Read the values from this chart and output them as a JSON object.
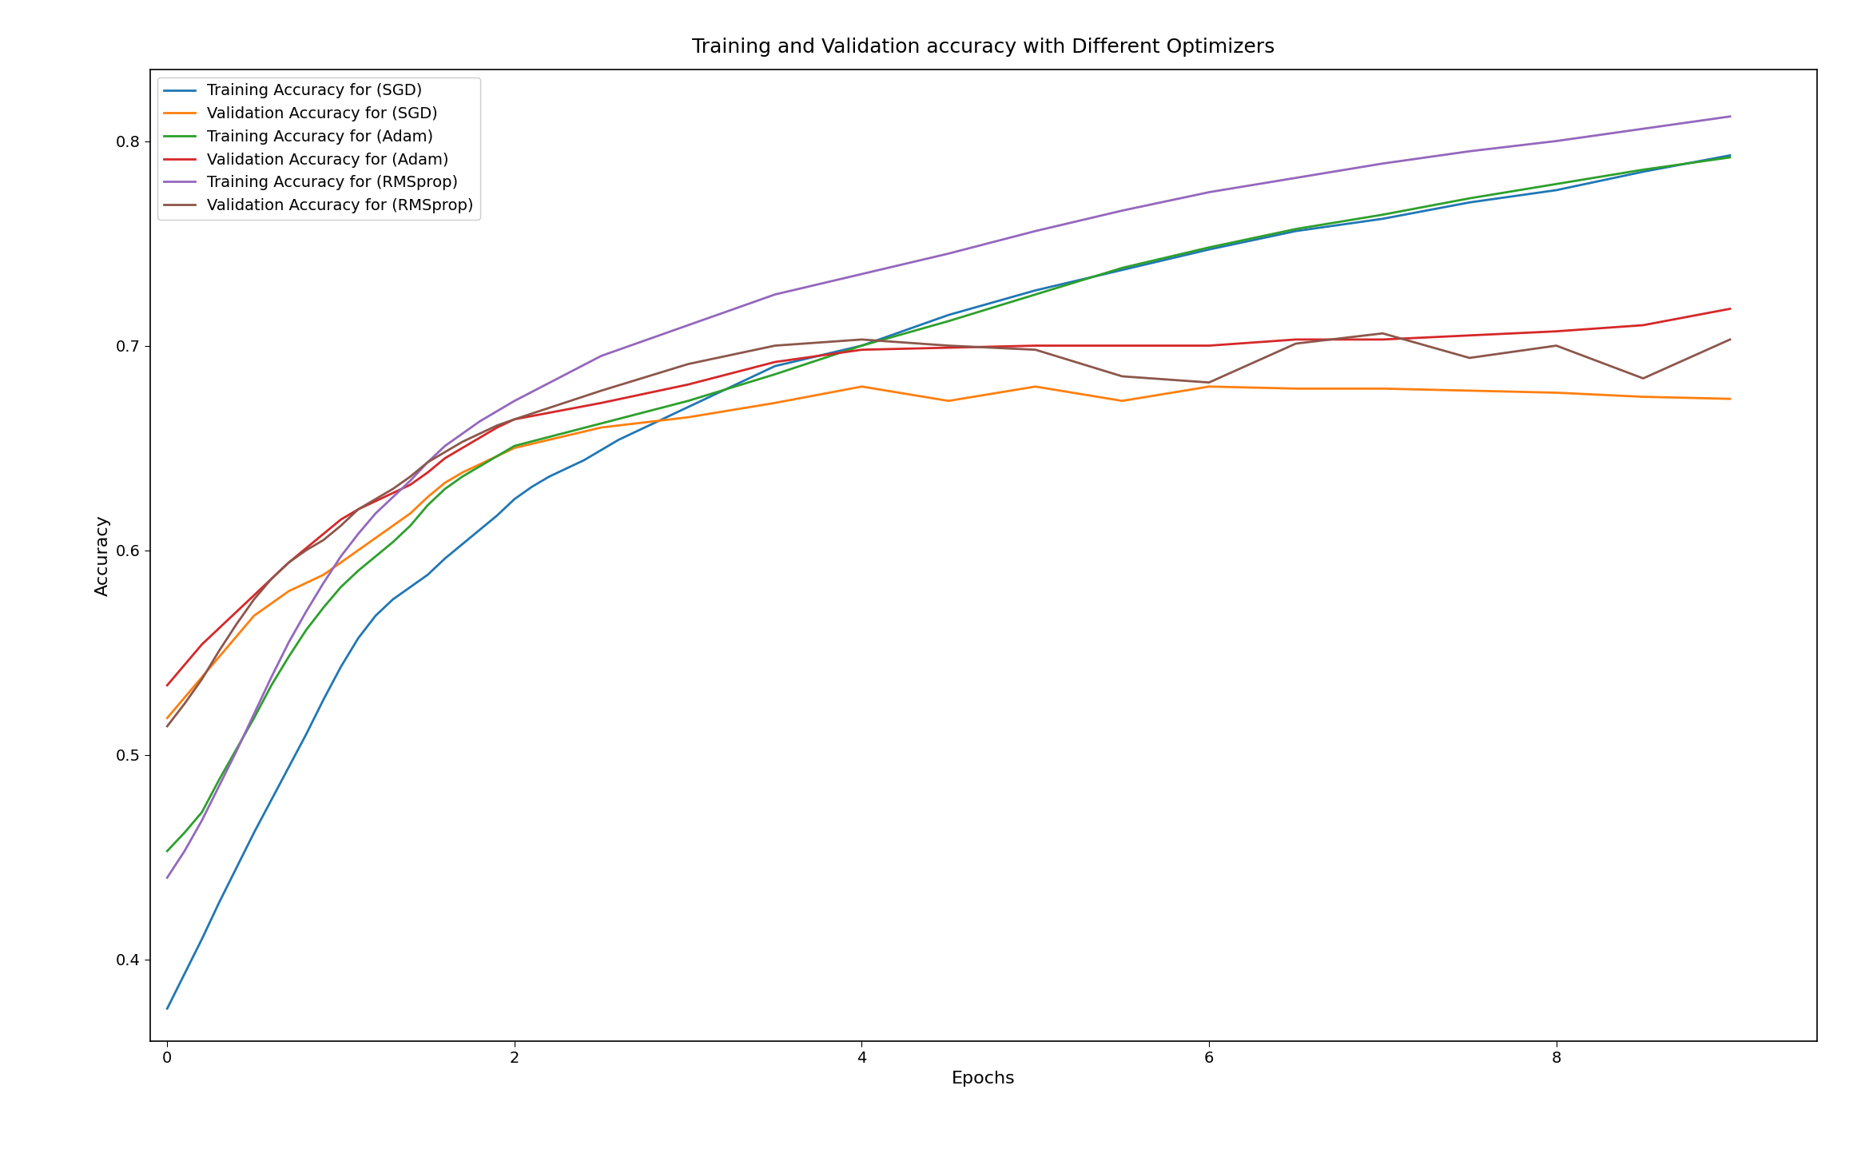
{
  "title": "Training and Validation accuracy with Different Optimizers",
  "xlabel": "Epochs",
  "ylabel": "Accuracy",
  "xlim": [
    -0.1,
    9.5
  ],
  "ylim": [
    0.36,
    0.835
  ],
  "series": [
    {
      "label": "Training Accuracy for (SGD)",
      "color": "#1f77b4",
      "x": [
        0.0,
        0.1,
        0.2,
        0.3,
        0.4,
        0.5,
        0.6,
        0.7,
        0.8,
        0.9,
        1.0,
        1.1,
        1.2,
        1.3,
        1.4,
        1.5,
        1.6,
        1.7,
        1.8,
        1.9,
        2.0,
        2.1,
        2.2,
        2.3,
        2.4,
        2.5,
        2.6,
        2.7,
        2.8,
        2.9,
        3.0,
        3.5,
        4.0,
        4.5,
        5.0,
        5.5,
        6.0,
        6.5,
        7.0,
        7.5,
        8.0,
        8.5,
        9.0
      ],
      "y": [
        0.376,
        0.393,
        0.41,
        0.428,
        0.445,
        0.462,
        0.478,
        0.494,
        0.51,
        0.527,
        0.543,
        0.557,
        0.568,
        0.576,
        0.582,
        0.588,
        0.596,
        0.603,
        0.61,
        0.617,
        0.625,
        0.631,
        0.636,
        0.64,
        0.644,
        0.649,
        0.654,
        0.658,
        0.662,
        0.666,
        0.67,
        0.69,
        0.7,
        0.715,
        0.727,
        0.737,
        0.747,
        0.756,
        0.762,
        0.77,
        0.776,
        0.785,
        0.793
      ]
    },
    {
      "label": "Validation Accuracy for (SGD)",
      "color": "#ff7f0e",
      "x": [
        0.0,
        0.1,
        0.2,
        0.3,
        0.4,
        0.5,
        0.6,
        0.7,
        0.8,
        0.9,
        1.0,
        1.1,
        1.2,
        1.3,
        1.4,
        1.5,
        1.6,
        1.7,
        1.8,
        1.9,
        2.0,
        2.5,
        3.0,
        3.5,
        4.0,
        4.5,
        5.0,
        5.5,
        6.0,
        6.5,
        7.0,
        7.5,
        8.0,
        8.5,
        9.0
      ],
      "y": [
        0.518,
        0.528,
        0.538,
        0.548,
        0.558,
        0.568,
        0.574,
        0.58,
        0.584,
        0.588,
        0.594,
        0.6,
        0.606,
        0.612,
        0.618,
        0.626,
        0.633,
        0.638,
        0.642,
        0.646,
        0.65,
        0.66,
        0.665,
        0.672,
        0.68,
        0.673,
        0.68,
        0.673,
        0.68,
        0.679,
        0.679,
        0.678,
        0.677,
        0.675,
        0.674
      ]
    },
    {
      "label": "Training Accuracy for (Adam)",
      "color": "#2ca02c",
      "x": [
        0.0,
        0.1,
        0.2,
        0.3,
        0.4,
        0.5,
        0.6,
        0.7,
        0.8,
        0.9,
        1.0,
        1.1,
        1.2,
        1.3,
        1.4,
        1.5,
        1.6,
        1.7,
        1.8,
        1.9,
        2.0,
        2.5,
        3.0,
        3.5,
        4.0,
        4.5,
        5.0,
        5.5,
        6.0,
        6.5,
        7.0,
        7.5,
        8.0,
        8.5,
        9.0
      ],
      "y": [
        0.453,
        0.462,
        0.472,
        0.488,
        0.503,
        0.518,
        0.534,
        0.548,
        0.561,
        0.572,
        0.582,
        0.59,
        0.597,
        0.604,
        0.612,
        0.622,
        0.63,
        0.636,
        0.641,
        0.646,
        0.651,
        0.662,
        0.673,
        0.686,
        0.7,
        0.712,
        0.725,
        0.738,
        0.748,
        0.757,
        0.764,
        0.772,
        0.779,
        0.786,
        0.792
      ]
    },
    {
      "label": "Validation Accuracy for (Adam)",
      "color": "#d62728",
      "x": [
        0.0,
        0.1,
        0.2,
        0.3,
        0.4,
        0.5,
        0.6,
        0.7,
        0.8,
        0.9,
        1.0,
        1.1,
        1.2,
        1.3,
        1.4,
        1.5,
        1.6,
        1.7,
        1.8,
        1.9,
        2.0,
        2.5,
        3.0,
        3.5,
        4.0,
        4.5,
        5.0,
        5.5,
        6.0,
        6.5,
        7.0,
        7.5,
        8.0,
        8.5,
        9.0
      ],
      "y": [
        0.534,
        0.544,
        0.554,
        0.562,
        0.57,
        0.578,
        0.586,
        0.594,
        0.601,
        0.608,
        0.615,
        0.62,
        0.624,
        0.628,
        0.632,
        0.638,
        0.645,
        0.65,
        0.655,
        0.66,
        0.664,
        0.672,
        0.681,
        0.692,
        0.698,
        0.699,
        0.7,
        0.7,
        0.7,
        0.703,
        0.703,
        0.705,
        0.707,
        0.71,
        0.718
      ]
    },
    {
      "label": "Training Accuracy for (RMSprop)",
      "color": "#9467bd",
      "x": [
        0.0,
        0.1,
        0.2,
        0.3,
        0.4,
        0.5,
        0.6,
        0.7,
        0.8,
        0.9,
        1.0,
        1.1,
        1.2,
        1.3,
        1.4,
        1.5,
        1.6,
        1.7,
        1.8,
        1.9,
        2.0,
        2.5,
        3.0,
        3.5,
        4.0,
        4.5,
        5.0,
        5.5,
        6.0,
        6.5,
        7.0,
        7.5,
        8.0,
        8.5,
        9.0
      ],
      "y": [
        0.44,
        0.453,
        0.468,
        0.485,
        0.502,
        0.52,
        0.538,
        0.555,
        0.57,
        0.584,
        0.597,
        0.608,
        0.618,
        0.626,
        0.634,
        0.643,
        0.651,
        0.657,
        0.663,
        0.668,
        0.673,
        0.695,
        0.71,
        0.725,
        0.735,
        0.745,
        0.756,
        0.766,
        0.775,
        0.782,
        0.789,
        0.795,
        0.8,
        0.806,
        0.812
      ]
    },
    {
      "label": "Validation Accuracy for (RMSprop)",
      "color": "#8c564b",
      "x": [
        0.0,
        0.1,
        0.2,
        0.3,
        0.4,
        0.5,
        0.6,
        0.7,
        0.8,
        0.9,
        1.0,
        1.1,
        1.2,
        1.3,
        1.4,
        1.5,
        1.6,
        1.7,
        1.8,
        1.9,
        2.0,
        2.5,
        3.0,
        3.5,
        4.0,
        4.5,
        5.0,
        5.5,
        6.0,
        6.5,
        7.0,
        7.5,
        8.0,
        8.5,
        9.0
      ],
      "y": [
        0.514,
        0.525,
        0.537,
        0.551,
        0.564,
        0.576,
        0.586,
        0.594,
        0.6,
        0.605,
        0.612,
        0.62,
        0.625,
        0.63,
        0.636,
        0.643,
        0.648,
        0.653,
        0.657,
        0.661,
        0.664,
        0.678,
        0.691,
        0.7,
        0.703,
        0.7,
        0.698,
        0.685,
        0.682,
        0.701,
        0.706,
        0.694,
        0.7,
        0.684,
        0.703
      ]
    }
  ],
  "yticks": [
    0.4,
    0.5,
    0.6,
    0.7,
    0.8
  ],
  "xticks": [
    0,
    2,
    4,
    6,
    8
  ],
  "legend_loc": "upper left",
  "figsize": [
    23.44,
    14.48
  ],
  "dpi": 100,
  "linewidth": 2.0,
  "title_fontsize": 18,
  "label_fontsize": 16,
  "tick_fontsize": 14,
  "legend_fontsize": 14
}
